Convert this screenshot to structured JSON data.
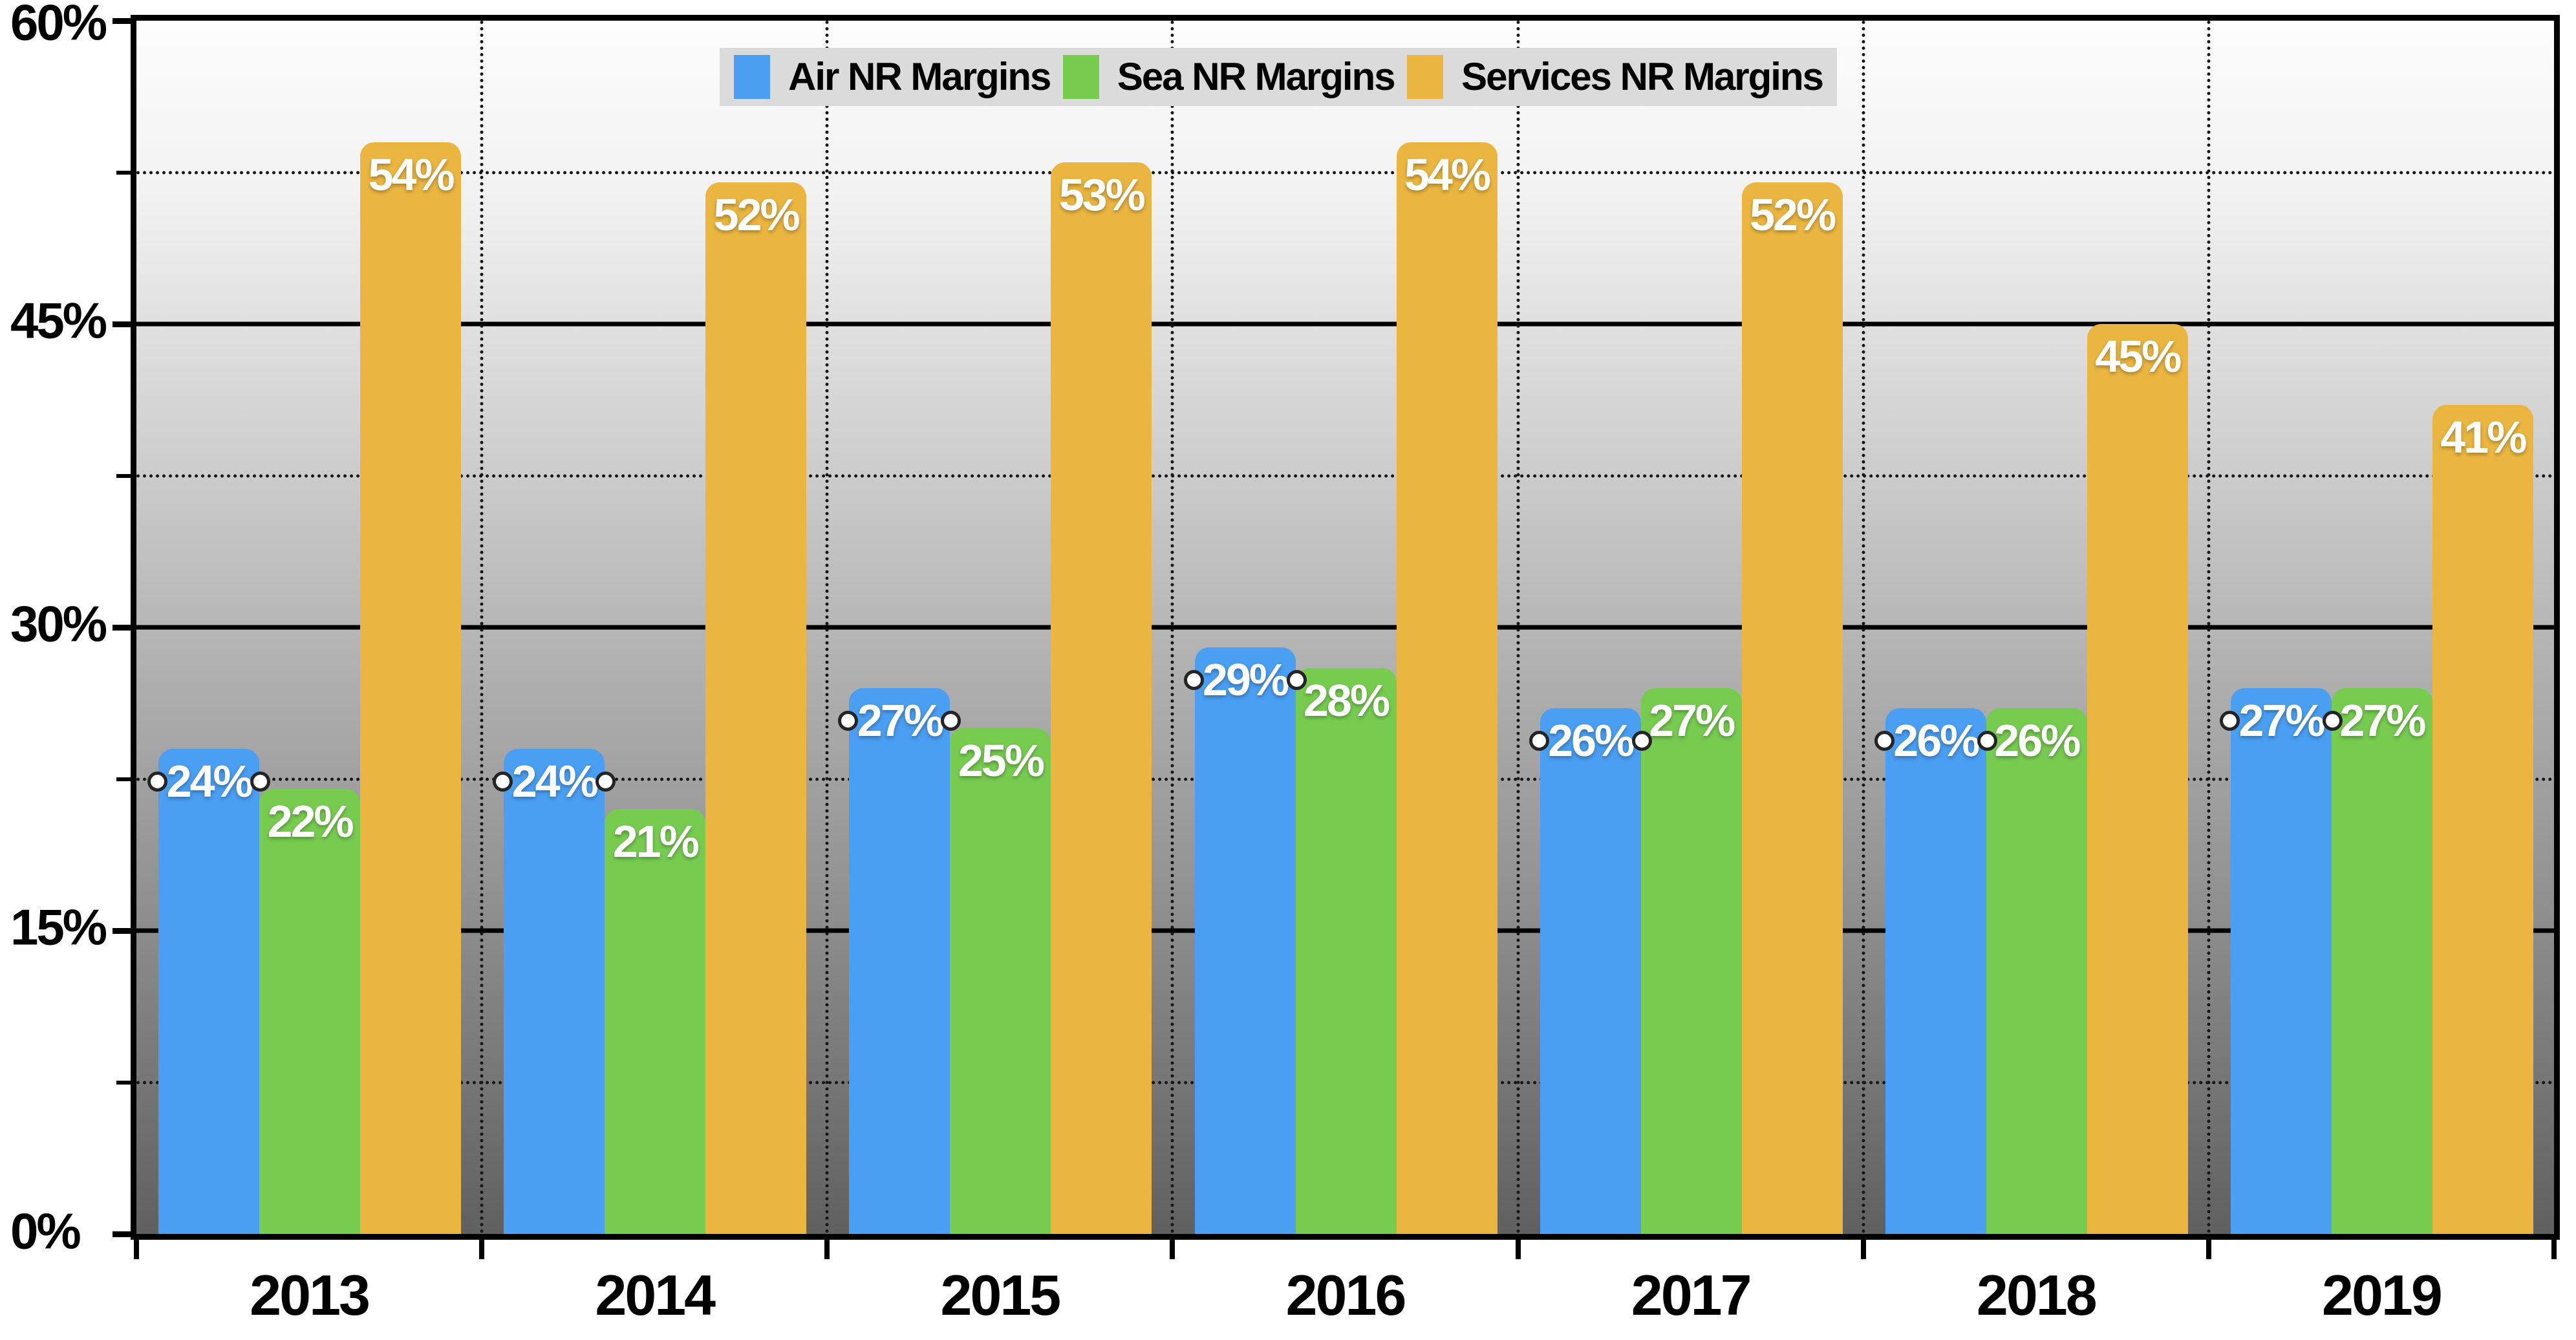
{
  "legend": {
    "items": [
      {
        "label": "Air NR Margins",
        "color": "#4A9FF3"
      },
      {
        "label": "Sea NR Margins",
        "color": "#77CC50"
      },
      {
        "label": "Services NR Margins",
        "color": "#EBB640"
      }
    ]
  },
  "y_axis": {
    "tick_labels": [
      "60%",
      "45%",
      "30%",
      "15%",
      "0%"
    ],
    "tick_values": [
      60,
      45,
      30,
      15,
      0
    ]
  },
  "chart_data": {
    "type": "bar",
    "categories": [
      "2013",
      "2014",
      "2015",
      "2016",
      "2017",
      "2018",
      "2019"
    ],
    "series": [
      {
        "name": "Air NR Margins",
        "color": "#4A9FF3",
        "values": [
          24,
          24,
          27,
          29,
          26,
          26,
          27
        ],
        "edge_markers": true
      },
      {
        "name": "Sea NR Margins",
        "color": "#77CC50",
        "values": [
          22,
          21,
          25,
          28,
          27,
          26,
          27
        ],
        "edge_markers": false
      },
      {
        "name": "Services NR Margins",
        "color": "#EBB640",
        "values": [
          54,
          52,
          53,
          54,
          52,
          45,
          41
        ],
        "edge_markers": false
      }
    ],
    "label_format": "{v}%",
    "ylim": [
      0,
      60
    ],
    "grid": {
      "major_horizontal": [
        15,
        30,
        45
      ],
      "minor_horizontal": [
        7.5,
        22.5,
        37.5,
        52.5
      ],
      "vertical_separators": true
    },
    "legend_position": "top-center",
    "background": {
      "type": "gradient",
      "top": "#FDFDFD",
      "bottom": "#606060"
    }
  }
}
